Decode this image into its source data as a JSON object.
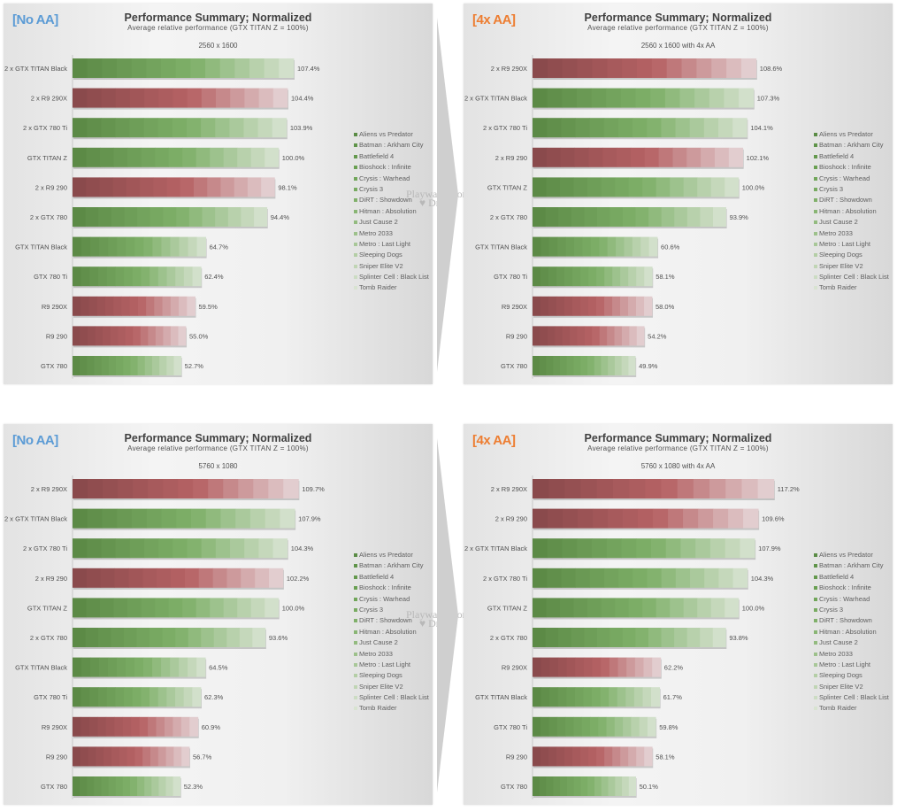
{
  "common": {
    "title": "Performance Summary; Normalized",
    "subtitle": "Average relative performance (GTX TITAN Z = 100%)",
    "watermark_line1": "Playwares.com",
    "watermark_line2": "♥ Dr.Lee",
    "legend": [
      {
        "label": "Aliens vs Predator",
        "color": "#5a8c45"
      },
      {
        "label": "Batman : Arkham City",
        "color": "#5f9449"
      },
      {
        "label": "Battlefield 4",
        "color": "#64994d"
      },
      {
        "label": "Bioshock : Infinite",
        "color": "#6aa052"
      },
      {
        "label": "Crysis : Warhead",
        "color": "#71a659"
      },
      {
        "label": "Crysis 3",
        "color": "#78ab61"
      },
      {
        "label": "DiRT : Showdown",
        "color": "#80b06a"
      },
      {
        "label": "Hitman : Absolution",
        "color": "#89b574"
      },
      {
        "label": "Just Cause 2",
        "color": "#93bb7f"
      },
      {
        "label": "Metro 2033",
        "color": "#9dc18b"
      },
      {
        "label": "Metro : Last Light",
        "color": "#a8c798"
      },
      {
        "label": "Sleeping Dogs",
        "color": "#b4cea6"
      },
      {
        "label": "Sniper Elite V2",
        "color": "#c0d5b4"
      },
      {
        "label": "Splinter Cell : Black List",
        "color": "#ccdcc3"
      },
      {
        "label": "Tomb Raider",
        "color": "#d8e3d1"
      }
    ],
    "colors": {
      "nvidia_dark": "#5c8a46",
      "nvidia_mid": "#7fb069",
      "nvidia_light": "#d2e0cb",
      "amd_dark": "#8a4a4c",
      "amd_mid": "#b66264",
      "amd_light": "#e2cdcf",
      "tag_no_aa": "#5b9bd5",
      "tag_4x_aa": "#ed7d31"
    }
  },
  "chart_data": [
    {
      "type": "bar",
      "orientation": "horizontal",
      "tag": "[No AA]",
      "tag_style": "blue",
      "title": "Performance Summary; Normalized",
      "subtitle": "Average relative performance (GTX TITAN Z = 100%)",
      "resolution": "2560 x 1600",
      "xlabel": "",
      "ylabel": "",
      "xlim": [
        0,
        120
      ],
      "grid": false,
      "legend_position": "right",
      "categories": [
        "2 x GTX TITAN Black",
        "2 x R9 290X",
        "2 x GTX 780 Ti",
        "GTX TITAN Z",
        "2 x R9 290",
        "2 x GTX 780",
        "GTX TITAN Black",
        "GTX 780 Ti",
        "R9 290X",
        "R9 290",
        "GTX 780"
      ],
      "vendors": [
        "nvidia",
        "amd",
        "nvidia",
        "nvidia",
        "amd",
        "nvidia",
        "nvidia",
        "nvidia",
        "amd",
        "amd",
        "nvidia"
      ],
      "values": [
        107.4,
        104.4,
        103.9,
        100.0,
        98.1,
        94.4,
        64.7,
        62.4,
        59.5,
        55.0,
        52.7
      ],
      "labels": [
        "107.4%",
        "104.4%",
        "103.9%",
        "100.0%",
        "98.1%",
        "94.4%",
        "64.7%",
        "62.4%",
        "59.5%",
        "55.0%",
        "52.7%"
      ]
    },
    {
      "type": "bar",
      "orientation": "horizontal",
      "tag": "[4x AA]",
      "tag_style": "orange",
      "title": "Performance Summary; Normalized",
      "subtitle": "Average relative performance (GTX TITAN Z = 100%)",
      "resolution": "2560 x 1600 with 4x AA",
      "xlabel": "",
      "ylabel": "",
      "xlim": [
        0,
        120
      ],
      "grid": false,
      "legend_position": "right",
      "categories": [
        "2 x R9 290X",
        "2 x GTX TITAN Black",
        "2 x GTX 780 Ti",
        "2 x R9 290",
        "GTX TITAN Z",
        "2 x GTX 780",
        "GTX TITAN Black",
        "GTX 780 Ti",
        "R9 290X",
        "R9 290",
        "GTX 780"
      ],
      "vendors": [
        "amd",
        "nvidia",
        "nvidia",
        "amd",
        "nvidia",
        "nvidia",
        "nvidia",
        "nvidia",
        "amd",
        "amd",
        "nvidia"
      ],
      "values": [
        108.6,
        107.3,
        104.1,
        102.1,
        100.0,
        93.9,
        60.6,
        58.1,
        58.0,
        54.2,
        49.9
      ],
      "labels": [
        "108.6%",
        "107.3%",
        "104.1%",
        "102.1%",
        "100.0%",
        "93.9%",
        "60.6%",
        "58.1%",
        "58.0%",
        "54.2%",
        "49.9%"
      ]
    },
    {
      "type": "bar",
      "orientation": "horizontal",
      "tag": "[No AA]",
      "tag_style": "blue",
      "title": "Performance Summary; Normalized",
      "subtitle": "Average relative performance (GTX TITAN Z = 100%)",
      "resolution": "5760 x 1080",
      "xlabel": "",
      "ylabel": "",
      "xlim": [
        0,
        120
      ],
      "grid": false,
      "legend_position": "right",
      "categories": [
        "2 x R9 290X",
        "2 x GTX TITAN Black",
        "2 x GTX 780 Ti",
        "2 x R9 290",
        "GTX TITAN Z",
        "2 x GTX 780",
        "GTX TITAN Black",
        "GTX 780 Ti",
        "R9 290X",
        "R9 290",
        "GTX 780"
      ],
      "vendors": [
        "amd",
        "nvidia",
        "nvidia",
        "amd",
        "nvidia",
        "nvidia",
        "nvidia",
        "nvidia",
        "amd",
        "amd",
        "nvidia"
      ],
      "values": [
        109.7,
        107.9,
        104.3,
        102.2,
        100.0,
        93.6,
        64.5,
        62.3,
        60.9,
        56.7,
        52.3
      ],
      "labels": [
        "109.7%",
        "107.9%",
        "104.3%",
        "102.2%",
        "100.0%",
        "93.6%",
        "64.5%",
        "62.3%",
        "60.9%",
        "56.7%",
        "52.3%"
      ]
    },
    {
      "type": "bar",
      "orientation": "horizontal",
      "tag": "[4x AA]",
      "tag_style": "orange",
      "title": "Performance Summary; Normalized",
      "subtitle": "Average relative performance (GTX TITAN Z = 100%)",
      "resolution": "5760 x 1080 with 4x AA",
      "xlabel": "",
      "ylabel": "",
      "xlim": [
        0,
        120
      ],
      "grid": false,
      "legend_position": "right",
      "categories": [
        "2 x R9 290X",
        "2 x R9 290",
        "2 x GTX TITAN Black",
        "2 x GTX 780 Ti",
        "GTX TITAN Z",
        "2 x GTX 780",
        "R9 290X",
        "GTX TITAN Black",
        "GTX 780 Ti",
        "R9 290",
        "GTX 780"
      ],
      "vendors": [
        "amd",
        "amd",
        "nvidia",
        "nvidia",
        "nvidia",
        "nvidia",
        "amd",
        "nvidia",
        "nvidia",
        "amd",
        "nvidia"
      ],
      "values": [
        117.2,
        109.6,
        107.9,
        104.3,
        100.0,
        93.8,
        62.2,
        61.7,
        59.8,
        58.1,
        50.1
      ],
      "labels": [
        "117.2%",
        "109.6%",
        "107.9%",
        "104.3%",
        "100.0%",
        "93.8%",
        "62.2%",
        "61.7%",
        "59.8%",
        "58.1%",
        "50.1%"
      ]
    }
  ]
}
